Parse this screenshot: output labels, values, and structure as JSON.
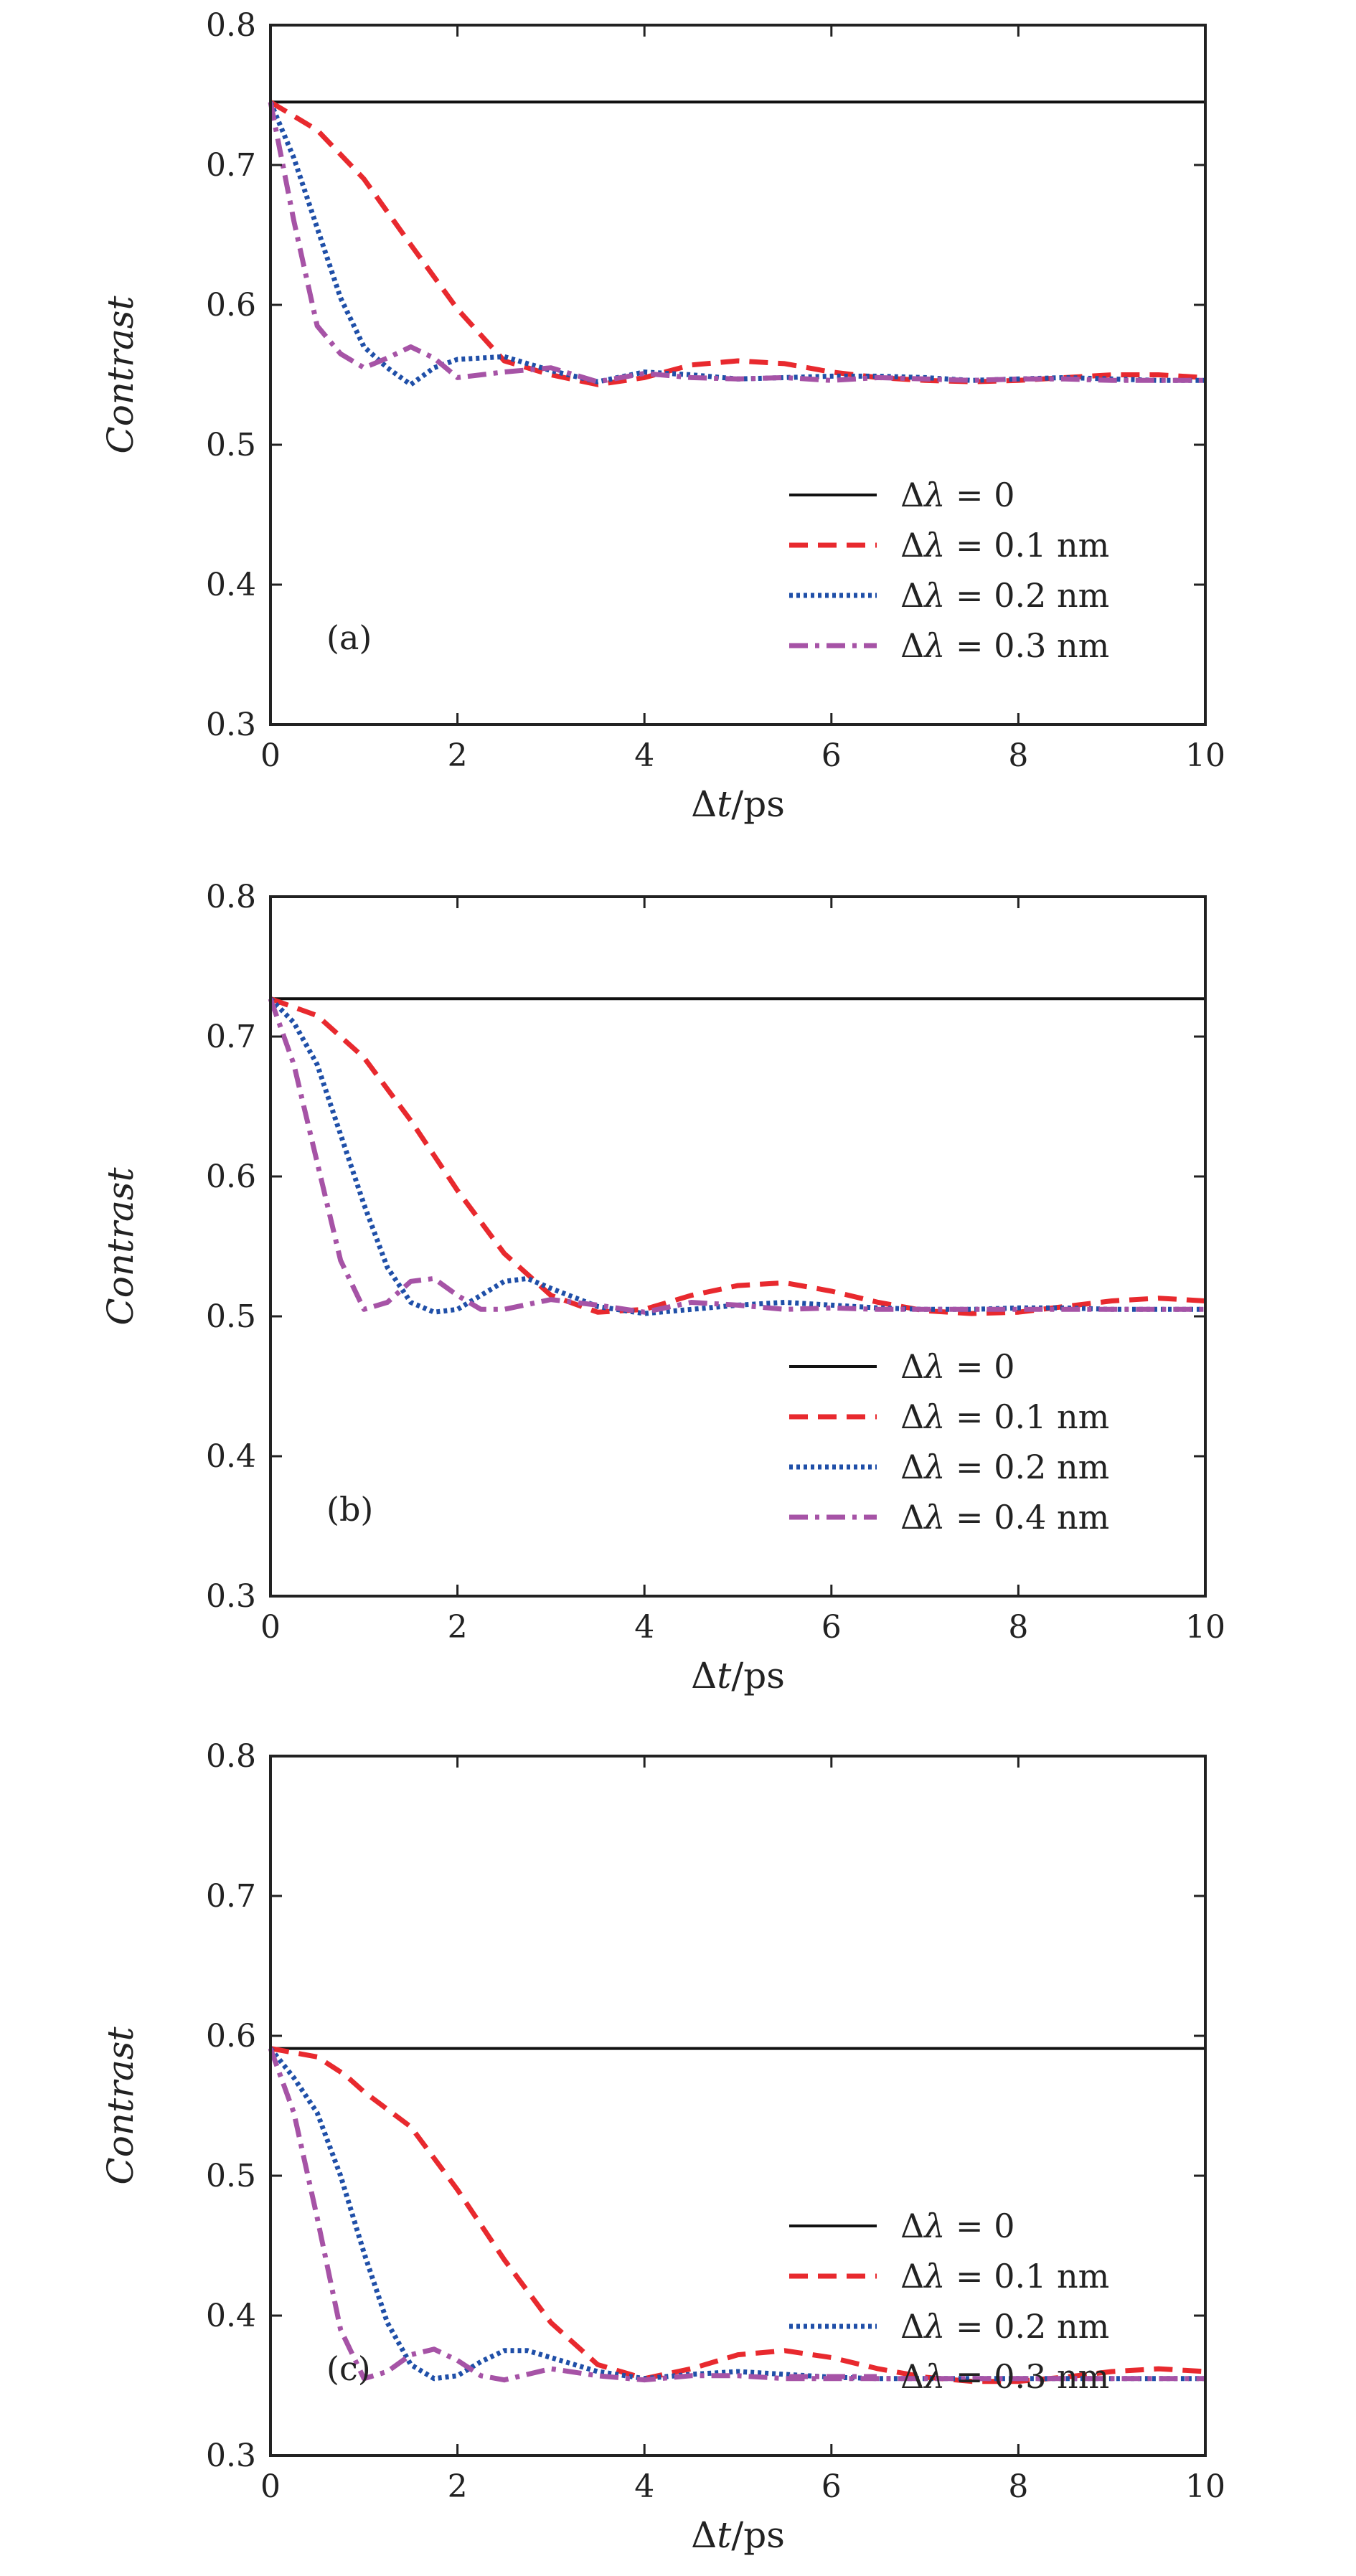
{
  "colors": {
    "axis": "#222222",
    "delta0": "#111111",
    "delta01": "#e8292e",
    "delta02": "#1f4fa8",
    "delta03": "#a653a6"
  },
  "chart_data": [
    {
      "type": "line",
      "panel_label": "(a)",
      "xlabel": "Δt/ps",
      "ylabel": "Contrast",
      "xlim": [
        0,
        10
      ],
      "ylim": [
        0.3,
        0.8
      ],
      "xticks": [
        "0",
        "2",
        "4",
        "6",
        "8",
        "10"
      ],
      "yticks": [
        "0.3",
        "0.4",
        "0.5",
        "0.6",
        "0.7",
        "0.8"
      ],
      "legend_position": "lower-right",
      "series": [
        {
          "name": "Δλ = 0",
          "style": "solid",
          "color": "#111111",
          "x": [
            0,
            10
          ],
          "y": [
            0.745,
            0.745
          ]
        },
        {
          "name": "Δλ = 0.1 nm",
          "style": "dashed",
          "color": "#e8292e",
          "x": [
            0,
            0.5,
            1,
            1.5,
            2,
            2.5,
            3,
            3.5,
            4,
            4.5,
            5,
            5.5,
            6,
            6.5,
            7,
            7.5,
            8,
            8.5,
            9,
            9.5,
            10
          ],
          "y": [
            0.745,
            0.725,
            0.69,
            0.643,
            0.597,
            0.56,
            0.55,
            0.543,
            0.548,
            0.557,
            0.56,
            0.558,
            0.552,
            0.548,
            0.546,
            0.545,
            0.546,
            0.548,
            0.55,
            0.55,
            0.548
          ]
        },
        {
          "name": "Δλ = 0.2 nm",
          "style": "dotted",
          "color": "#1f4fa8",
          "x": [
            0,
            0.25,
            0.5,
            0.75,
            1,
            1.25,
            1.5,
            1.75,
            2,
            2.5,
            3,
            3.5,
            4,
            4.5,
            5,
            5.5,
            6,
            6.5,
            7,
            7.5,
            8,
            8.5,
            9,
            9.5,
            10
          ],
          "y": [
            0.745,
            0.705,
            0.655,
            0.605,
            0.57,
            0.555,
            0.543,
            0.555,
            0.561,
            0.563,
            0.553,
            0.545,
            0.552,
            0.55,
            0.547,
            0.548,
            0.549,
            0.549,
            0.548,
            0.546,
            0.547,
            0.548,
            0.547,
            0.546,
            0.546
          ]
        },
        {
          "name": "Δλ = 0.3 nm",
          "style": "dashdot",
          "color": "#a653a6",
          "x": [
            0,
            0.25,
            0.5,
            0.75,
            1,
            1.25,
            1.5,
            1.75,
            2,
            2.5,
            3,
            3.5,
            4,
            4.5,
            5,
            5.5,
            6,
            6.5,
            7,
            7.5,
            8,
            8.5,
            9,
            9.5,
            10
          ],
          "y": [
            0.745,
            0.66,
            0.585,
            0.565,
            0.555,
            0.562,
            0.57,
            0.562,
            0.548,
            0.552,
            0.555,
            0.545,
            0.551,
            0.548,
            0.547,
            0.548,
            0.546,
            0.548,
            0.547,
            0.546,
            0.547,
            0.547,
            0.546,
            0.546,
            0.546
          ]
        }
      ]
    },
    {
      "type": "line",
      "panel_label": "(b)",
      "xlabel": "Δt/ps",
      "ylabel": "Contrast",
      "xlim": [
        0,
        10
      ],
      "ylim": [
        0.3,
        0.8
      ],
      "xticks": [
        "0",
        "2",
        "4",
        "6",
        "8",
        "10"
      ],
      "yticks": [
        "0.3",
        "0.4",
        "0.5",
        "0.6",
        "0.7",
        "0.8"
      ],
      "legend_position": "lower-right",
      "series": [
        {
          "name": "Δλ = 0",
          "style": "solid",
          "color": "#111111",
          "x": [
            0,
            10
          ],
          "y": [
            0.727,
            0.727
          ]
        },
        {
          "name": "Δλ = 0.1 nm",
          "style": "dashed",
          "color": "#e8292e",
          "x": [
            0,
            0.5,
            1,
            1.5,
            2,
            2.5,
            3,
            3.5,
            4,
            4.5,
            5,
            5.5,
            6,
            6.5,
            7,
            7.5,
            8,
            8.5,
            9,
            9.5,
            10
          ],
          "y": [
            0.727,
            0.715,
            0.685,
            0.64,
            0.59,
            0.545,
            0.515,
            0.503,
            0.505,
            0.515,
            0.522,
            0.524,
            0.518,
            0.51,
            0.504,
            0.502,
            0.503,
            0.507,
            0.511,
            0.513,
            0.511
          ]
        },
        {
          "name": "Δλ = 0.2 nm",
          "style": "dotted",
          "color": "#1f4fa8",
          "x": [
            0,
            0.25,
            0.5,
            0.75,
            1,
            1.25,
            1.5,
            1.75,
            2,
            2.25,
            2.5,
            2.75,
            3,
            3.5,
            4,
            4.5,
            5,
            5.5,
            6,
            6.5,
            7,
            7.5,
            8,
            8.5,
            9,
            9.5,
            10
          ],
          "y": [
            0.727,
            0.71,
            0.68,
            0.63,
            0.58,
            0.535,
            0.51,
            0.503,
            0.505,
            0.515,
            0.525,
            0.527,
            0.52,
            0.507,
            0.502,
            0.505,
            0.508,
            0.51,
            0.508,
            0.506,
            0.505,
            0.505,
            0.506,
            0.506,
            0.505,
            0.505,
            0.505
          ]
        },
        {
          "name": "Δλ = 0.4 nm",
          "style": "dashdot",
          "color": "#a653a6",
          "x": [
            0,
            0.25,
            0.5,
            0.75,
            1,
            1.25,
            1.5,
            1.75,
            2,
            2.25,
            2.5,
            3,
            3.5,
            4,
            4.5,
            5,
            5.5,
            6,
            6.5,
            7,
            7.5,
            8,
            8.5,
            9,
            9.5,
            10
          ],
          "y": [
            0.727,
            0.68,
            0.61,
            0.54,
            0.505,
            0.51,
            0.525,
            0.527,
            0.515,
            0.505,
            0.505,
            0.512,
            0.508,
            0.503,
            0.51,
            0.508,
            0.505,
            0.506,
            0.505,
            0.505,
            0.505,
            0.505,
            0.505,
            0.505,
            0.505,
            0.505
          ]
        }
      ]
    },
    {
      "type": "line",
      "panel_label": "(c)",
      "xlabel": "Δt/ps",
      "ylabel": "Contrast",
      "xlim": [
        0,
        10
      ],
      "ylim": [
        0.3,
        0.8
      ],
      "xticks": [
        "0",
        "2",
        "4",
        "6",
        "8",
        "10"
      ],
      "yticks": [
        "0.3",
        "0.4",
        "0.5",
        "0.6",
        "0.7",
        "0.8"
      ],
      "legend_position": "lower-right",
      "series": [
        {
          "name": "Δλ = 0",
          "style": "solid",
          "color": "#111111",
          "x": [
            0,
            10
          ],
          "y": [
            0.591,
            0.591
          ]
        },
        {
          "name": "Δλ = 0.1 nm",
          "style": "dashed",
          "color": "#e8292e",
          "x": [
            0,
            0.5,
            0.8,
            1,
            1.5,
            2,
            2.5,
            3,
            3.5,
            4,
            4.5,
            5,
            5.5,
            6,
            6.5,
            7,
            7.5,
            8,
            8.5,
            9,
            9.5,
            10
          ],
          "y": [
            0.591,
            0.585,
            0.572,
            0.56,
            0.535,
            0.49,
            0.44,
            0.395,
            0.365,
            0.355,
            0.362,
            0.372,
            0.375,
            0.37,
            0.362,
            0.356,
            0.353,
            0.353,
            0.356,
            0.36,
            0.362,
            0.36
          ]
        },
        {
          "name": "Δλ = 0.2 nm",
          "style": "dotted",
          "color": "#1f4fa8",
          "x": [
            0,
            0.25,
            0.5,
            0.75,
            1,
            1.25,
            1.5,
            1.75,
            2,
            2.25,
            2.5,
            2.75,
            3,
            3.5,
            4,
            4.5,
            5,
            5.5,
            6,
            6.5,
            7,
            7.5,
            8,
            8.5,
            9,
            9.5,
            10
          ],
          "y": [
            0.591,
            0.57,
            0.545,
            0.5,
            0.445,
            0.395,
            0.365,
            0.355,
            0.357,
            0.367,
            0.375,
            0.375,
            0.37,
            0.36,
            0.355,
            0.358,
            0.36,
            0.358,
            0.356,
            0.355,
            0.355,
            0.355,
            0.355,
            0.355,
            0.355,
            0.355,
            0.355
          ]
        },
        {
          "name": "Δλ = 0.3 nm",
          "style": "dashdot",
          "color": "#a653a6",
          "x": [
            0,
            0.25,
            0.5,
            0.75,
            1,
            1.25,
            1.5,
            1.75,
            2,
            2.25,
            2.5,
            3,
            3.5,
            4,
            4.5,
            5,
            5.5,
            6,
            6.5,
            7,
            7.5,
            8,
            8.5,
            9,
            9.5,
            10
          ],
          "y": [
            0.591,
            0.545,
            0.47,
            0.39,
            0.355,
            0.36,
            0.372,
            0.376,
            0.368,
            0.357,
            0.354,
            0.362,
            0.357,
            0.354,
            0.357,
            0.357,
            0.355,
            0.355,
            0.355,
            0.355,
            0.355,
            0.355,
            0.355,
            0.355,
            0.355,
            0.355
          ]
        }
      ]
    }
  ]
}
